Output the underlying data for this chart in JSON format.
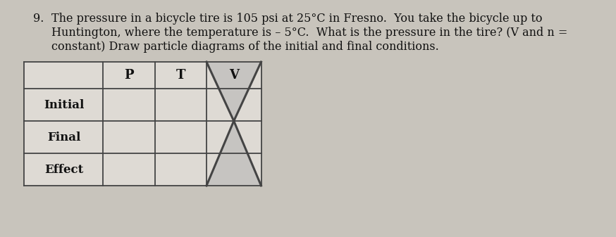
{
  "question_number": "9.",
  "question_text_line1": "The pressure in a bicycle tire is 105 psi at 25°C in Fresno.  You take the bicycle up to",
  "question_text_line2": "Huntington, where the temperature is – 5°C.  What is the pressure in the tire? (V and n =",
  "question_text_line3": "constant) Draw particle diagrams of the initial and final conditions.",
  "col_labels": [
    "",
    "P",
    "T",
    "V"
  ],
  "row_labels": [
    "Initial",
    "Final",
    "Effect"
  ],
  "bg_color": "#c8c4bc",
  "page_color": "#e8e4de",
  "cell_color": "#dedad4",
  "line_color": "#444444",
  "shading_color": "#aaaaaa",
  "text_color": "#111111",
  "font_size_q": 11.5,
  "font_size_table": 12
}
